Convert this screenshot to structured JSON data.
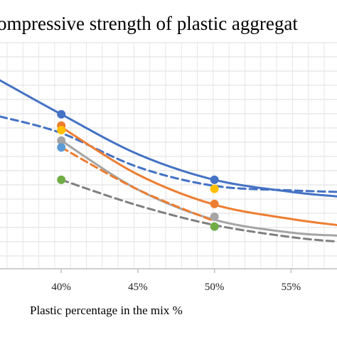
{
  "chart_data": {
    "type": "line",
    "title": "ompressive strength of plastic aggregat",
    "xlabel": "Plastic percentage in the mix %",
    "ylabel": "",
    "xlim": [
      0.36,
      0.58
    ],
    "ylim": [
      0,
      30
    ],
    "x_ticks": [
      0.4,
      0.45,
      0.5,
      0.55
    ],
    "x_tick_labels": [
      "40%",
      "45%",
      "50%",
      "55%"
    ],
    "grid": true,
    "series": [
      {
        "color": "#4472C4",
        "style": "solid",
        "x": [
          0.36,
          0.4,
          0.45,
          0.5,
          0.55,
          0.58
        ],
        "y": [
          25.0,
          20.5,
          15.2,
          11.8,
          10.2,
          9.6
        ],
        "markers": [
          [
            0.4,
            20.5
          ],
          [
            0.5,
            11.8
          ]
        ]
      },
      {
        "color": "#4472C4",
        "style": "dashed",
        "x": [
          0.36,
          0.4,
          0.45,
          0.5,
          0.55,
          0.58
        ],
        "y": [
          20.2,
          18.0,
          13.5,
          11.0,
          10.4,
          10.2
        ],
        "markers": []
      },
      {
        "color": "#ED7D31",
        "style": "solid",
        "x": [
          0.4,
          0.45,
          0.5,
          0.55,
          0.58
        ],
        "y": [
          18.8,
          12.5,
          8.5,
          6.6,
          5.8
        ],
        "markers": [
          [
            0.4,
            19.0
          ],
          [
            0.5,
            8.6
          ]
        ]
      },
      {
        "color": "#A5A5A5",
        "style": "solid",
        "x": [
          0.4,
          0.45,
          0.5,
          0.55,
          0.58
        ],
        "y": [
          17.0,
          10.5,
          6.5,
          4.8,
          4.4
        ],
        "markers": [
          [
            0.4,
            17.0
          ],
          [
            0.5,
            6.9
          ]
        ]
      },
      {
        "color": "#FFC000",
        "style": "none",
        "x": [],
        "y": [],
        "markers": [
          [
            0.4,
            18.4
          ],
          [
            0.5,
            10.6
          ]
        ]
      },
      {
        "color": "#5B9BD5",
        "style": "none",
        "x": [],
        "y": [],
        "markers": [
          [
            0.4,
            16.1
          ]
        ]
      },
      {
        "color": "#ED7D31",
        "style": "dashed",
        "x": [
          0.4,
          0.45,
          0.5
        ],
        "y": [
          16.1,
          10.5,
          6.3
        ],
        "markers": []
      },
      {
        "color": "#7F7F7F",
        "style": "dashed",
        "x": [
          0.4,
          0.45,
          0.5,
          0.55,
          0.58
        ],
        "y": [
          11.8,
          8.4,
          5.8,
          4.2,
          3.6
        ],
        "markers": []
      },
      {
        "color": "#70AD47",
        "style": "none",
        "x": [],
        "y": [],
        "markers": [
          [
            0.4,
            11.8
          ],
          [
            0.5,
            5.6
          ]
        ]
      }
    ]
  }
}
